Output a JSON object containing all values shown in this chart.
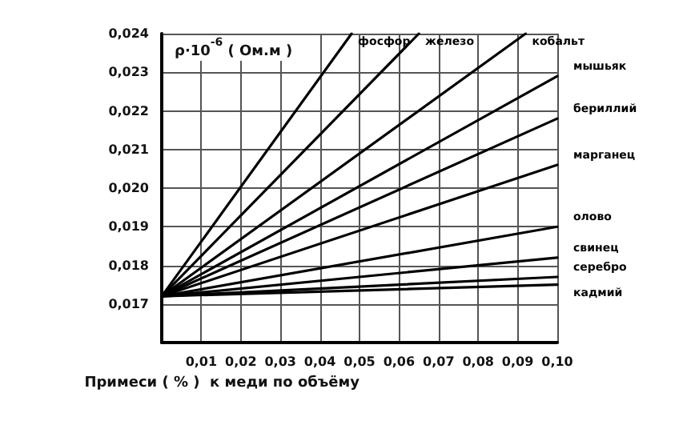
{
  "chart_data": {
    "type": "line",
    "ylabel": "ρ·10$^{-6}$ ( Ом.м )",
    "xlabel": "Примеси ( % )  к меди по объёму",
    "xlim": [
      0,
      0.1
    ],
    "ylim": [
      0.016,
      0.024
    ],
    "xticks": [
      {
        "value": 0.01,
        "label": "0,01"
      },
      {
        "value": 0.02,
        "label": "0,02"
      },
      {
        "value": 0.03,
        "label": "0,03"
      },
      {
        "value": 0.04,
        "label": "0,04"
      },
      {
        "value": 0.05,
        "label": "0,05"
      },
      {
        "value": 0.06,
        "label": "0,06"
      },
      {
        "value": 0.07,
        "label": "0,07"
      },
      {
        "value": 0.08,
        "label": "0,08"
      },
      {
        "value": 0.09,
        "label": "0,09"
      },
      {
        "value": 0.1,
        "label": "0,10"
      }
    ],
    "yticks": [
      {
        "value": 0.017,
        "label": "0,017"
      },
      {
        "value": 0.018,
        "label": "0,018"
      },
      {
        "value": 0.019,
        "label": "0,019"
      },
      {
        "value": 0.02,
        "label": "0,020"
      },
      {
        "value": 0.021,
        "label": "0,021"
      },
      {
        "value": 0.022,
        "label": "0,022"
      },
      {
        "value": 0.023,
        "label": "0,023"
      },
      {
        "value": 0.024,
        "label": "0,024"
      }
    ],
    "grid": true,
    "marker": "none",
    "line_style": "solid",
    "legend": false,
    "series": [
      {
        "name": "фосфор",
        "color": "#000000",
        "x": [
          0,
          0.048
        ],
        "values": [
          0.0172,
          0.024
        ]
      },
      {
        "name": "железо",
        "color": "#000000",
        "x": [
          0,
          0.065
        ],
        "values": [
          0.0172,
          0.024
        ]
      },
      {
        "name": "кобальт",
        "color": "#000000",
        "x": [
          0,
          0.092
        ],
        "values": [
          0.0172,
          0.024
        ]
      },
      {
        "name": "мышьяк",
        "color": "#000000",
        "x": [
          0,
          0.1
        ],
        "values": [
          0.0172,
          0.0229
        ]
      },
      {
        "name": "бериллий",
        "color": "#000000",
        "x": [
          0,
          0.1
        ],
        "values": [
          0.0172,
          0.0218
        ]
      },
      {
        "name": "марганец",
        "color": "#000000",
        "x": [
          0,
          0.1
        ],
        "values": [
          0.0172,
          0.0206
        ]
      },
      {
        "name": "олово",
        "color": "#000000",
        "x": [
          0,
          0.1
        ],
        "values": [
          0.0172,
          0.019
        ]
      },
      {
        "name": "свинец",
        "color": "#000000",
        "x": [
          0,
          0.1
        ],
        "values": [
          0.0172,
          0.0182
        ]
      },
      {
        "name": "серебро",
        "color": "#000000",
        "x": [
          0,
          0.1
        ],
        "values": [
          0.0172,
          0.0177
        ]
      },
      {
        "name": "кадмий",
        "color": "#000000",
        "x": [
          0,
          0.1
        ],
        "values": [
          0.0172,
          0.0175
        ]
      }
    ]
  }
}
